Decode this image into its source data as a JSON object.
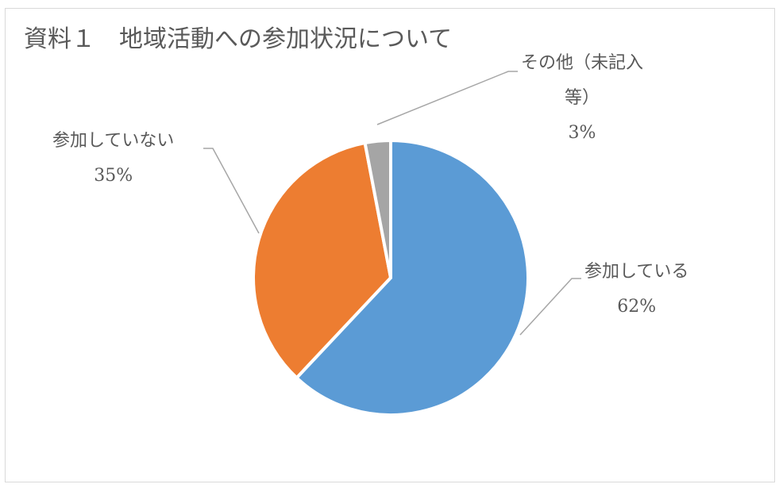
{
  "chart_data": {
    "type": "pie",
    "title": "資料１　地域活動への参加状況について",
    "slices": [
      {
        "label": "参加している",
        "value": 62,
        "percent_label": "62%",
        "color": "#5b9bd5"
      },
      {
        "label": "参加していない",
        "value": 35,
        "percent_label": "35%",
        "color": "#ed7d31"
      },
      {
        "label_line1": "その他（未記入",
        "label_line2": "等）",
        "value": 3,
        "percent_label": "3%",
        "color": "#a5a5a5"
      }
    ],
    "legend": "none"
  }
}
